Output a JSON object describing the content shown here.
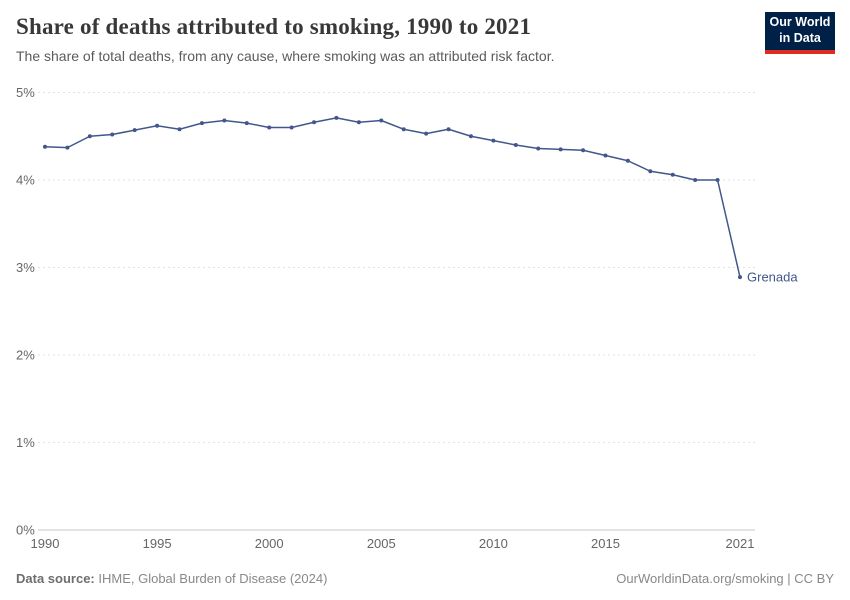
{
  "header": {
    "title": "Share of deaths attributed to smoking, 1990 to 2021",
    "subtitle": "The share of total deaths, from any cause, where smoking was an attributed risk factor."
  },
  "logo": {
    "line1": "Our World",
    "line2": "in Data",
    "bg_color": "#002147",
    "accent_color": "#dc2d20"
  },
  "chart_data": {
    "type": "line",
    "title": "Share of deaths attributed to smoking, 1990 to 2021",
    "xlabel": "",
    "ylabel": "",
    "xlim": [
      1990,
      2021
    ],
    "ylim": [
      0,
      5
    ],
    "x_ticks": [
      1990,
      1995,
      2000,
      2005,
      2010,
      2015,
      2021
    ],
    "y_ticks": [
      0,
      1,
      2,
      3,
      4,
      5
    ],
    "y_tick_suffix": "%",
    "grid": "horizontal-dashed",
    "legend_position": "end-of-line-label",
    "series": [
      {
        "name": "Grenada",
        "color": "#41578b",
        "x": [
          1990,
          1991,
          1992,
          1993,
          1994,
          1995,
          1996,
          1997,
          1998,
          1999,
          2000,
          2001,
          2002,
          2003,
          2004,
          2005,
          2006,
          2007,
          2008,
          2009,
          2010,
          2011,
          2012,
          2013,
          2014,
          2015,
          2016,
          2017,
          2018,
          2019,
          2020,
          2021
        ],
        "values": [
          4.38,
          4.37,
          4.5,
          4.52,
          4.57,
          4.62,
          4.58,
          4.65,
          4.68,
          4.65,
          4.6,
          4.6,
          4.66,
          4.71,
          4.66,
          4.68,
          4.58,
          4.53,
          4.58,
          4.5,
          4.45,
          4.4,
          4.36,
          4.35,
          4.34,
          4.28,
          4.22,
          4.1,
          4.06,
          4.0,
          4.0,
          2.89
        ]
      }
    ]
  },
  "footer": {
    "source_label": "Data source:",
    "source_text": "IHME, Global Burden of Disease (2024)",
    "right_text": "OurWorldinData.org/smoking | CC BY"
  }
}
